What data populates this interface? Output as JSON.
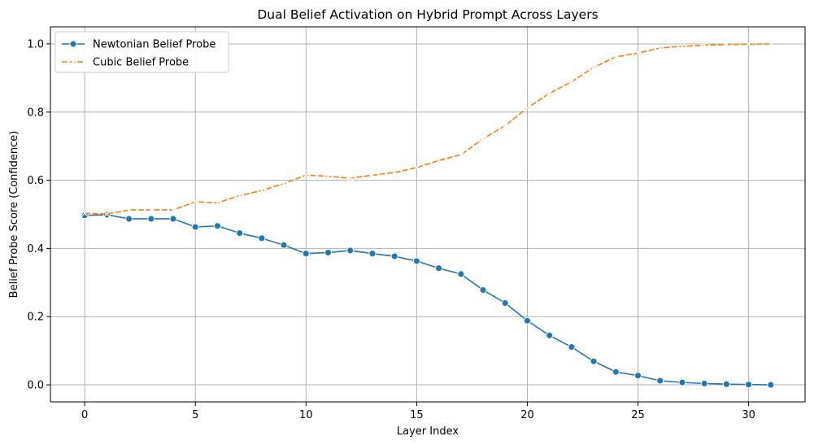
{
  "chart_data": {
    "type": "line",
    "title": "Dual Belief Activation on Hybrid Prompt Across Layers",
    "xlabel": "Layer Index",
    "ylabel": "Belief Probe Score (Confidence)",
    "xlim": [
      -1.55,
      32.55
    ],
    "ylim": [
      -0.05,
      1.05
    ],
    "xticks": [
      0,
      5,
      10,
      15,
      20,
      25,
      30
    ],
    "yticks": [
      0.0,
      0.2,
      0.4,
      0.6,
      0.8,
      1.0
    ],
    "xtick_labels": [
      "0",
      "5",
      "10",
      "15",
      "20",
      "25",
      "30"
    ],
    "ytick_labels": [
      "0.0",
      "0.2",
      "0.4",
      "0.6",
      "0.8",
      "1.0"
    ],
    "grid": true,
    "legend_position": "top-left",
    "x": [
      0,
      1,
      2,
      3,
      4,
      5,
      6,
      7,
      8,
      9,
      10,
      11,
      12,
      13,
      14,
      15,
      16,
      17,
      18,
      19,
      20,
      21,
      22,
      23,
      24,
      25,
      26,
      27,
      28,
      29,
      30,
      31
    ],
    "series": [
      {
        "name": "Newtonian Belief Probe",
        "color": "#1f77b4",
        "marker": "circle",
        "linestyle": "solid",
        "values": [
          0.497,
          0.499,
          0.487,
          0.487,
          0.487,
          0.463,
          0.466,
          0.445,
          0.43,
          0.41,
          0.385,
          0.388,
          0.394,
          0.385,
          0.377,
          0.363,
          0.342,
          0.325,
          0.278,
          0.24,
          0.188,
          0.145,
          0.111,
          0.069,
          0.038,
          0.027,
          0.012,
          0.007,
          0.004,
          0.002,
          0.001,
          0.0
        ]
      },
      {
        "name": "Cubic Belief Probe",
        "color": "#ff7f0e",
        "marker": "x",
        "linestyle": "dashed",
        "values": [
          0.503,
          0.501,
          0.513,
          0.513,
          0.513,
          0.537,
          0.534,
          0.555,
          0.57,
          0.59,
          0.615,
          0.612,
          0.606,
          0.615,
          0.623,
          0.637,
          0.658,
          0.675,
          0.722,
          0.76,
          0.812,
          0.855,
          0.889,
          0.931,
          0.962,
          0.973,
          0.988,
          0.993,
          0.996,
          0.998,
          0.999,
          1.0
        ]
      }
    ]
  }
}
